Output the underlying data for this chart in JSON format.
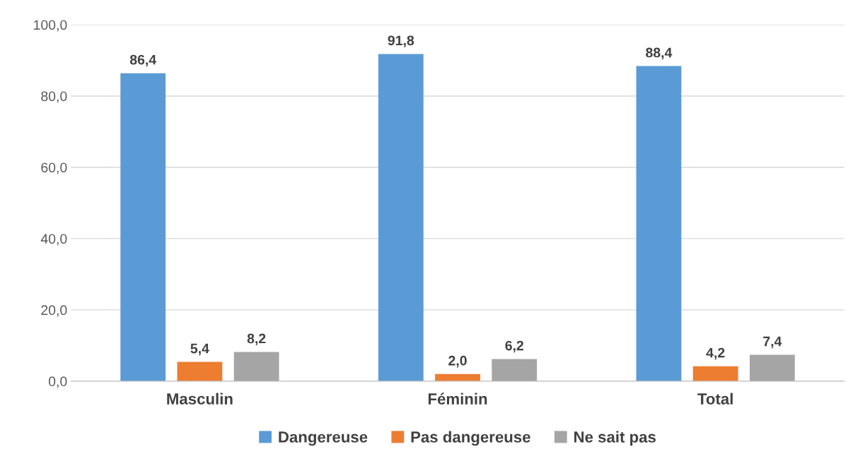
{
  "chart_data": {
    "type": "bar",
    "categories": [
      "Masculin",
      "Féminin",
      "Total"
    ],
    "series": [
      {
        "name": "Dangereuse",
        "color": "#5b9bd5",
        "values": [
          86.4,
          91.8,
          88.4
        ],
        "value_labels": [
          "86,4",
          "91,8",
          "88,4"
        ]
      },
      {
        "name": "Pas dangereuse",
        "color": "#ed7d31",
        "values": [
          5.4,
          2.0,
          4.2
        ],
        "value_labels": [
          "5,4",
          "2,0",
          "4,2"
        ]
      },
      {
        "name": "Ne sait pas",
        "color": "#a5a5a5",
        "values": [
          8.2,
          6.2,
          7.4
        ],
        "value_labels": [
          "8,2",
          "6,2",
          "7,4"
        ]
      }
    ],
    "ylim": [
      0,
      100
    ],
    "yticks": [
      {
        "value": 0,
        "label": "0,0"
      },
      {
        "value": 20,
        "label": "20,0"
      },
      {
        "value": 40,
        "label": "40,0"
      },
      {
        "value": 60,
        "label": "60,0"
      },
      {
        "value": 80,
        "label": "80,0"
      },
      {
        "value": 100,
        "label": "100,0"
      }
    ],
    "grid": "y",
    "legend": "bottom"
  }
}
